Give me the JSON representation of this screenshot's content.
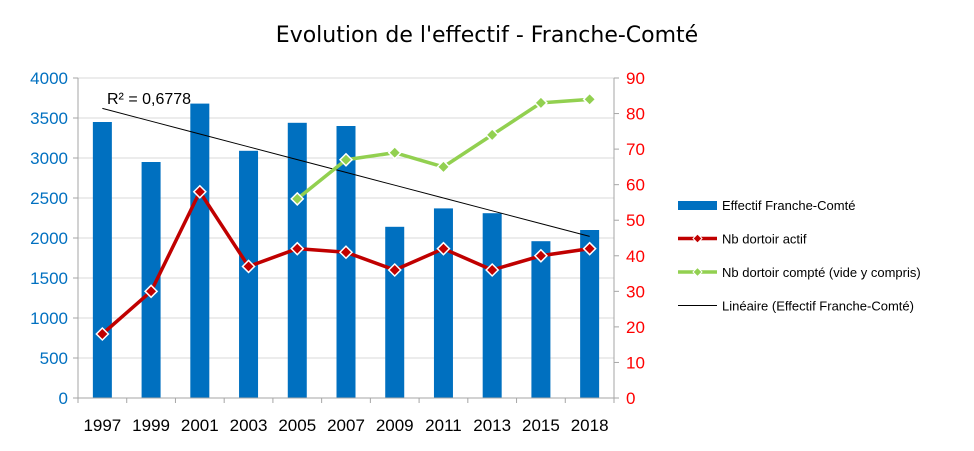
{
  "chart_data": {
    "type": "bar",
    "title": "Evolution de l'effectif - Franche-Comté",
    "categories": [
      "1997",
      "1999",
      "2001",
      "2003",
      "2005",
      "2007",
      "2009",
      "2011",
      "2013",
      "2015",
      "2018"
    ],
    "y_left": {
      "min": 0,
      "max": 4000,
      "step": 500,
      "color": "#0070c0"
    },
    "y_right": {
      "min": 0,
      "max": 90,
      "step": 10,
      "color": "#ff0000"
    },
    "grid": true,
    "legend_position": "right",
    "series": [
      {
        "name": "Effectif Franche-Comté",
        "kind": "bar",
        "axis": "left",
        "color": "#0070c0",
        "values": [
          3450,
          2950,
          3680,
          3090,
          3440,
          3400,
          2140,
          2370,
          2310,
          1960,
          2100
        ]
      },
      {
        "name": "Nb dortoir actif",
        "kind": "line",
        "axis": "right",
        "color": "#c00000",
        "marker": "diamond",
        "values": [
          18,
          30,
          58,
          37,
          42,
          41,
          36,
          42,
          36,
          40,
          42
        ]
      },
      {
        "name": "Nb dortoir compté (vide y compris)",
        "kind": "line",
        "axis": "right",
        "color": "#92d050",
        "marker": "diamond",
        "values": [
          null,
          null,
          null,
          null,
          56,
          67,
          69,
          65,
          74,
          83,
          84
        ]
      },
      {
        "name": "Linéaire (Effectif Franche-Comté)",
        "kind": "trendline",
        "axis": "left",
        "color": "#000000",
        "values": [
          3620,
          3460,
          3300,
          3140,
          2980,
          2820,
          2660,
          2500,
          2340,
          2180,
          2020
        ]
      }
    ],
    "annotations": [
      {
        "text": "R² = 0,6778"
      }
    ]
  }
}
